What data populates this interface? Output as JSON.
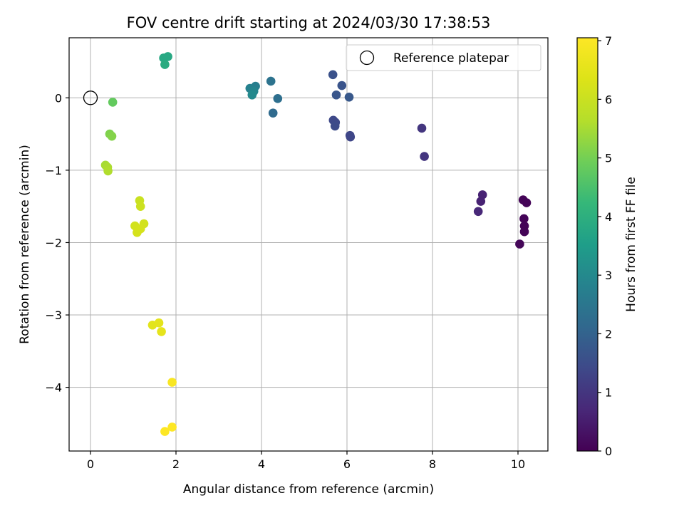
{
  "chart_data": {
    "type": "scatter",
    "title": "FOV centre drift starting at 2024/03/30 17:38:53",
    "xlabel": "Angular distance from reference (arcmin)",
    "ylabel": "Rotation from reference (arcmin)",
    "xlim": [
      -0.5,
      10.7
    ],
    "ylim": [
      -4.88,
      0.83
    ],
    "x_ticks": [
      0,
      2,
      4,
      6,
      8,
      10
    ],
    "y_ticks": [
      0,
      -1,
      -2,
      -3,
      -4
    ],
    "grid": true,
    "legend": {
      "placement": "upper right",
      "entries": [
        "Reference platepar"
      ]
    },
    "reference_point": {
      "label": "Reference platepar",
      "x": 0,
      "y": 0
    },
    "colorbar": {
      "label": "Hours from first FF file",
      "colormap": "viridis",
      "range": [
        0,
        7.05
      ],
      "ticks": [
        0,
        1,
        2,
        3,
        4,
        5,
        6,
        7
      ]
    },
    "points": [
      {
        "x": 10.12,
        "y": -1.41,
        "hours": 0.05
      },
      {
        "x": 10.2,
        "y": -1.45,
        "hours": 0.05
      },
      {
        "x": 10.14,
        "y": -1.67,
        "hours": 0.05
      },
      {
        "x": 10.15,
        "y": -1.77,
        "hours": 0.05
      },
      {
        "x": 10.15,
        "y": -1.85,
        "hours": 0.05
      },
      {
        "x": 10.04,
        "y": -2.02,
        "hours": 0.1
      },
      {
        "x": 9.17,
        "y": -1.34,
        "hours": 0.6
      },
      {
        "x": 9.13,
        "y": -1.43,
        "hours": 0.6
      },
      {
        "x": 9.07,
        "y": -1.57,
        "hours": 0.7
      },
      {
        "x": 7.75,
        "y": -0.42,
        "hours": 1.0
      },
      {
        "x": 7.81,
        "y": -0.81,
        "hours": 1.0
      },
      {
        "x": 6.07,
        "y": -0.52,
        "hours": 1.35
      },
      {
        "x": 6.08,
        "y": -0.54,
        "hours": 1.35
      },
      {
        "x": 5.68,
        "y": -0.31,
        "hours": 1.4
      },
      {
        "x": 5.73,
        "y": -0.34,
        "hours": 1.4
      },
      {
        "x": 5.72,
        "y": -0.39,
        "hours": 1.45
      },
      {
        "x": 5.67,
        "y": 0.32,
        "hours": 1.6
      },
      {
        "x": 5.88,
        "y": 0.17,
        "hours": 1.65
      },
      {
        "x": 5.75,
        "y": 0.04,
        "hours": 1.7
      },
      {
        "x": 6.05,
        "y": 0.01,
        "hours": 1.75
      },
      {
        "x": 4.27,
        "y": -0.21,
        "hours": 2.2
      },
      {
        "x": 4.38,
        "y": -0.01,
        "hours": 2.3
      },
      {
        "x": 4.22,
        "y": 0.23,
        "hours": 2.4
      },
      {
        "x": 3.86,
        "y": 0.16,
        "hours": 2.7
      },
      {
        "x": 3.73,
        "y": 0.13,
        "hours": 2.8
      },
      {
        "x": 3.82,
        "y": 0.09,
        "hours": 2.9
      },
      {
        "x": 3.78,
        "y": 0.04,
        "hours": 3.0
      },
      {
        "x": 1.71,
        "y": 0.55,
        "hours": 3.8
      },
      {
        "x": 1.81,
        "y": 0.57,
        "hours": 3.8
      },
      {
        "x": 1.74,
        "y": 0.46,
        "hours": 3.9
      },
      {
        "x": 0.52,
        "y": -0.06,
        "hours": 4.8
      },
      {
        "x": 0.45,
        "y": -0.5,
        "hours": 5.1
      },
      {
        "x": 0.5,
        "y": -0.53,
        "hours": 5.15
      },
      {
        "x": 0.35,
        "y": -0.93,
        "hours": 5.5
      },
      {
        "x": 0.4,
        "y": -0.96,
        "hours": 5.55
      },
      {
        "x": 0.41,
        "y": -1.01,
        "hours": 5.6
      },
      {
        "x": 1.15,
        "y": -1.42,
        "hours": 6.0
      },
      {
        "x": 1.17,
        "y": -1.5,
        "hours": 6.05
      },
      {
        "x": 1.04,
        "y": -1.77,
        "hours": 6.15
      },
      {
        "x": 1.25,
        "y": -1.74,
        "hours": 6.15
      },
      {
        "x": 1.17,
        "y": -1.81,
        "hours": 6.2
      },
      {
        "x": 1.09,
        "y": -1.86,
        "hours": 6.2
      },
      {
        "x": 1.45,
        "y": -3.14,
        "hours": 6.45
      },
      {
        "x": 1.6,
        "y": -3.11,
        "hours": 6.5
      },
      {
        "x": 1.66,
        "y": -3.23,
        "hours": 6.55
      },
      {
        "x": 1.91,
        "y": -3.93,
        "hours": 6.95
      },
      {
        "x": 1.91,
        "y": -4.55,
        "hours": 7.05
      },
      {
        "x": 1.74,
        "y": -4.61,
        "hours": 7.05
      }
    ]
  }
}
